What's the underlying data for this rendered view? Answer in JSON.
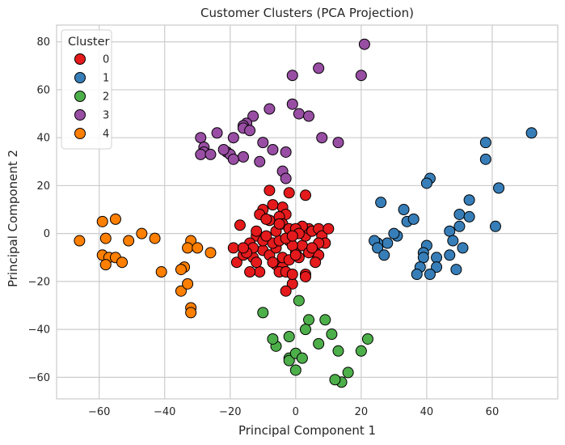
{
  "chart_data": {
    "type": "scatter",
    "title": "Customer Clusters (PCA Projection)",
    "xlabel": "Principal Component 1",
    "ylabel": "Principal Component 2",
    "xlim": [
      -73,
      80
    ],
    "ylim": [
      -69,
      87
    ],
    "xticks": [
      -60,
      -40,
      -20,
      0,
      20,
      40,
      60
    ],
    "yticks": [
      -60,
      -40,
      -20,
      0,
      20,
      40,
      60,
      80
    ],
    "grid": true,
    "legend": {
      "title": "Cluster",
      "placement": "top-left"
    },
    "series": [
      {
        "name": "0",
        "color": "#e41a1c",
        "points": [
          [
            -17,
            3.5
          ],
          [
            -12,
            -1
          ],
          [
            -8,
            18
          ],
          [
            -4,
            11
          ],
          [
            -3,
            8
          ],
          [
            -2,
            17
          ],
          [
            -5,
            7
          ],
          [
            -8,
            5.5
          ],
          [
            -10,
            10
          ],
          [
            -14,
            -4
          ],
          [
            -18,
            -12
          ],
          [
            -16,
            -9
          ],
          [
            -13,
            -10
          ],
          [
            -11,
            -16
          ],
          [
            -12,
            -12
          ],
          [
            -14,
            -16
          ],
          [
            -10,
            -7
          ],
          [
            -8,
            -9
          ],
          [
            -6,
            -6
          ],
          [
            -7,
            -4
          ],
          [
            -5,
            -3
          ],
          [
            -6,
            -13
          ],
          [
            -4,
            -14
          ],
          [
            -5,
            -16
          ],
          [
            -3,
            -16
          ],
          [
            -4,
            -10
          ],
          [
            -2,
            -11
          ],
          [
            0,
            -8
          ],
          [
            1,
            -10
          ],
          [
            2,
            -5
          ],
          [
            3,
            -1
          ],
          [
            4,
            2
          ],
          [
            5,
            1
          ],
          [
            2,
            3
          ],
          [
            7,
            2
          ],
          [
            8,
            -1
          ],
          [
            9,
            -4
          ],
          [
            10,
            2
          ],
          [
            6,
            -8
          ],
          [
            7,
            -9
          ],
          [
            7,
            -4
          ],
          [
            3,
            -17
          ],
          [
            3,
            -18
          ],
          [
            3,
            16
          ],
          [
            -1,
            -21
          ],
          [
            -3,
            -24
          ],
          [
            -1,
            -17
          ],
          [
            -2,
            -3
          ],
          [
            -4,
            4
          ],
          [
            -2,
            2
          ],
          [
            0,
            2
          ],
          [
            1,
            0
          ],
          [
            -1,
            -5
          ],
          [
            0,
            -9
          ],
          [
            -7,
            -12
          ],
          [
            -10,
            -3
          ],
          [
            -12,
            1
          ],
          [
            -9,
            -1
          ],
          [
            -13,
            -6
          ],
          [
            -15,
            -8
          ],
          [
            -19,
            -6
          ],
          [
            -16,
            -6
          ],
          [
            -6,
            1
          ],
          [
            -3,
            -2
          ],
          [
            -1,
            -1
          ],
          [
            4,
            -8
          ],
          [
            5,
            -6
          ],
          [
            6,
            -12
          ],
          [
            -11,
            8
          ],
          [
            -9,
            6
          ],
          [
            -7,
            12
          ],
          [
            -5,
            4
          ]
        ]
      },
      {
        "name": "1",
        "color": "#377eb8",
        "points": [
          [
            72,
            42
          ],
          [
            58,
            38
          ],
          [
            58,
            31
          ],
          [
            62,
            19
          ],
          [
            53,
            14
          ],
          [
            41,
            23
          ],
          [
            40,
            21
          ],
          [
            26,
            13
          ],
          [
            33,
            10
          ],
          [
            34,
            5
          ],
          [
            36,
            6
          ],
          [
            47,
            1
          ],
          [
            50,
            3
          ],
          [
            50,
            8
          ],
          [
            53,
            7
          ],
          [
            61,
            3
          ],
          [
            48,
            -3
          ],
          [
            51,
            -6
          ],
          [
            40,
            -5
          ],
          [
            39,
            -8
          ],
          [
            39,
            -10
          ],
          [
            38,
            -14
          ],
          [
            43,
            -10
          ],
          [
            43,
            -14
          ],
          [
            47,
            -9
          ],
          [
            49,
            -15
          ],
          [
            41,
            -17
          ],
          [
            37,
            -17
          ],
          [
            31,
            -1
          ],
          [
            30,
            0
          ],
          [
            28,
            -4
          ],
          [
            25,
            -4
          ],
          [
            24,
            -3
          ],
          [
            25,
            -6
          ],
          [
            27,
            -9
          ]
        ]
      },
      {
        "name": "2",
        "color": "#4daf4a",
        "points": [
          [
            -10,
            -33
          ],
          [
            1,
            -28
          ],
          [
            4,
            -36
          ],
          [
            9,
            -36
          ],
          [
            3,
            -40
          ],
          [
            -6,
            -47
          ],
          [
            -2,
            -43
          ],
          [
            -7,
            -44
          ],
          [
            7,
            -46
          ],
          [
            11,
            -42
          ],
          [
            13,
            -49
          ],
          [
            -2,
            -52
          ],
          [
            -2,
            -53
          ],
          [
            0,
            -50
          ],
          [
            2,
            -52
          ],
          [
            0,
            -57
          ],
          [
            22,
            -44
          ],
          [
            20,
            -49
          ],
          [
            16,
            -58
          ],
          [
            14,
            -62
          ],
          [
            12,
            -61
          ]
        ]
      },
      {
        "name": "3",
        "color": "#984ea3",
        "points": [
          [
            21,
            79
          ],
          [
            7,
            69
          ],
          [
            -1,
            66
          ],
          [
            20,
            66
          ],
          [
            -8,
            52
          ],
          [
            -1,
            54
          ],
          [
            1,
            50
          ],
          [
            4,
            49
          ],
          [
            -13,
            49
          ],
          [
            -15,
            46
          ],
          [
            -16,
            45
          ],
          [
            -16,
            44
          ],
          [
            -24,
            42
          ],
          [
            -19,
            40
          ],
          [
            -29,
            40
          ],
          [
            -14,
            43
          ],
          [
            -10,
            38
          ],
          [
            -7,
            35
          ],
          [
            -3,
            34
          ],
          [
            -16,
            32
          ],
          [
            -21,
            34
          ],
          [
            -20,
            33
          ],
          [
            -22,
            35
          ],
          [
            -11,
            30
          ],
          [
            -28,
            36
          ],
          [
            -28,
            34
          ],
          [
            -29,
            33
          ],
          [
            -26,
            33
          ],
          [
            -19,
            31
          ],
          [
            -4,
            26
          ],
          [
            -3,
            23
          ],
          [
            8,
            40
          ],
          [
            13,
            38
          ]
        ]
      },
      {
        "name": "4",
        "color": "#ff7f00",
        "points": [
          [
            -66,
            -3
          ],
          [
            -59,
            5
          ],
          [
            -55,
            6
          ],
          [
            -58,
            -2
          ],
          [
            -59,
            -9
          ],
          [
            -57,
            -10
          ],
          [
            -58,
            -13
          ],
          [
            -55,
            -10
          ],
          [
            -53,
            -12
          ],
          [
            -51,
            -3
          ],
          [
            -47,
            0
          ],
          [
            -43,
            -2
          ],
          [
            -41,
            -16
          ],
          [
            -32,
            -3
          ],
          [
            -33,
            -6
          ],
          [
            -30,
            -6
          ],
          [
            -26,
            -8
          ],
          [
            -34,
            -14
          ],
          [
            -35,
            -15
          ],
          [
            -35,
            -24
          ],
          [
            -33,
            -21
          ],
          [
            -32,
            -31
          ],
          [
            -32,
            -33
          ]
        ]
      }
    ]
  }
}
